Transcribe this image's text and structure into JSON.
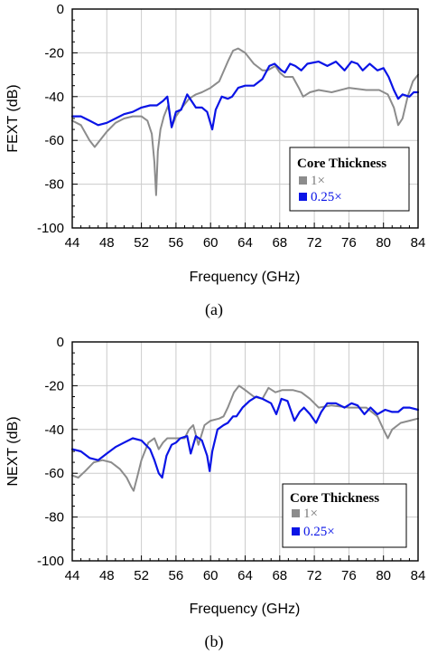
{
  "chart_data": [
    {
      "type": "line",
      "caption": "(a)",
      "xlabel": "Frequency (GHz)",
      "ylabel": "FEXT (dB)",
      "xlim": [
        44,
        84
      ],
      "ylim": [
        -100,
        0
      ],
      "xticks": [
        "44",
        "48",
        "52",
        "56",
        "60",
        "64",
        "68",
        "72",
        "76",
        "80",
        "84"
      ],
      "yticks": [
        "0",
        "-20",
        "-40",
        "-60",
        "-80",
        "-100"
      ],
      "grid": true,
      "legend": {
        "title": "Core Thickness",
        "placement": "bottom-right"
      },
      "series": [
        {
          "name": "1×",
          "color": "#8c8c8c",
          "points": [
            [
              44,
              -51
            ],
            [
              45,
              -53
            ],
            [
              46,
              -60
            ],
            [
              46.6,
              -63
            ],
            [
              47.2,
              -60
            ],
            [
              48,
              -56
            ],
            [
              49,
              -52
            ],
            [
              50,
              -50
            ],
            [
              51,
              -49
            ],
            [
              52,
              -49
            ],
            [
              52.7,
              -51
            ],
            [
              53.2,
              -57
            ],
            [
              53.5,
              -70
            ],
            [
              53.7,
              -85
            ],
            [
              53.9,
              -65
            ],
            [
              54.2,
              -55
            ],
            [
              54.6,
              -49
            ],
            [
              55.1,
              -44
            ],
            [
              55.5,
              -54
            ],
            [
              56,
              -49
            ],
            [
              56.7,
              -45
            ],
            [
              57.5,
              -41
            ],
            [
              58.3,
              -39
            ],
            [
              59,
              -38
            ],
            [
              60,
              -36
            ],
            [
              61,
              -33
            ],
            [
              62,
              -24
            ],
            [
              62.6,
              -19
            ],
            [
              63.2,
              -18
            ],
            [
              64,
              -20
            ],
            [
              65,
              -25
            ],
            [
              66,
              -28
            ],
            [
              66.6,
              -28
            ],
            [
              67.5,
              -26
            ],
            [
              68,
              -29
            ],
            [
              68.6,
              -31
            ],
            [
              69.5,
              -31
            ],
            [
              70.2,
              -36
            ],
            [
              70.7,
              -40
            ],
            [
              71.5,
              -38
            ],
            [
              72.5,
              -37
            ],
            [
              74,
              -38
            ],
            [
              76,
              -36
            ],
            [
              78,
              -37
            ],
            [
              79.5,
              -37
            ],
            [
              80.5,
              -39
            ],
            [
              81.2,
              -45
            ],
            [
              81.7,
              -53
            ],
            [
              82.2,
              -50
            ],
            [
              82.8,
              -40
            ],
            [
              83.4,
              -33
            ],
            [
              84,
              -30
            ]
          ]
        },
        {
          "name": "0.25×",
          "color": "#0a14e6",
          "points": [
            [
              44,
              -49
            ],
            [
              45,
              -49
            ],
            [
              46,
              -51
            ],
            [
              47,
              -53
            ],
            [
              48,
              -52
            ],
            [
              49,
              -50
            ],
            [
              50,
              -48
            ],
            [
              51,
              -47
            ],
            [
              52,
              -45
            ],
            [
              53,
              -44
            ],
            [
              53.8,
              -44
            ],
            [
              54.5,
              -42
            ],
            [
              55,
              -40
            ],
            [
              55.5,
              -54
            ],
            [
              56,
              -47
            ],
            [
              56.6,
              -46
            ],
            [
              57.3,
              -39
            ],
            [
              57.8,
              -42
            ],
            [
              58.3,
              -45
            ],
            [
              59,
              -45
            ],
            [
              59.6,
              -47
            ],
            [
              60.2,
              -55
            ],
            [
              60.6,
              -46
            ],
            [
              61.3,
              -40
            ],
            [
              62,
              -41
            ],
            [
              62.5,
              -40
            ],
            [
              63.2,
              -36
            ],
            [
              64,
              -35
            ],
            [
              65,
              -35
            ],
            [
              66,
              -32
            ],
            [
              66.8,
              -26
            ],
            [
              67.4,
              -25
            ],
            [
              68.2,
              -28
            ],
            [
              68.6,
              -29
            ],
            [
              69.2,
              -25
            ],
            [
              69.8,
              -26
            ],
            [
              70.5,
              -28
            ],
            [
              71.2,
              -25
            ],
            [
              72.5,
              -24
            ],
            [
              73.5,
              -26
            ],
            [
              74.5,
              -24
            ],
            [
              75.5,
              -28
            ],
            [
              76.3,
              -24
            ],
            [
              77,
              -25
            ],
            [
              77.6,
              -28
            ],
            [
              78.4,
              -25
            ],
            [
              79.3,
              -28
            ],
            [
              80,
              -27
            ],
            [
              80.6,
              -31
            ],
            [
              81.2,
              -37
            ],
            [
              81.7,
              -41
            ],
            [
              82.2,
              -39
            ],
            [
              83,
              -40
            ],
            [
              83.5,
              -38
            ],
            [
              84,
              -38
            ]
          ]
        }
      ]
    },
    {
      "type": "line",
      "caption": "(b)",
      "xlabel": "Frequency (GHz)",
      "ylabel": "NEXT (dB)",
      "xlim": [
        44,
        84
      ],
      "ylim": [
        -100,
        0
      ],
      "xticks": [
        "44",
        "48",
        "52",
        "56",
        "60",
        "64",
        "68",
        "72",
        "76",
        "80",
        "84"
      ],
      "yticks": [
        "0",
        "-20",
        "-40",
        "-60",
        "-80",
        "-100"
      ],
      "grid": true,
      "legend": {
        "title": "Core Thickness",
        "placement": "bottom-right"
      },
      "series": [
        {
          "name": "1×",
          "color": "#8c8c8c",
          "points": [
            [
              44,
              -61
            ],
            [
              44.7,
              -62
            ],
            [
              45.5,
              -59
            ],
            [
              46.5,
              -55
            ],
            [
              47.5,
              -54
            ],
            [
              48.5,
              -55
            ],
            [
              49.5,
              -58
            ],
            [
              50.3,
              -62
            ],
            [
              50.8,
              -66
            ],
            [
              51.1,
              -68
            ],
            [
              51.5,
              -62
            ],
            [
              52,
              -54
            ],
            [
              52.8,
              -46
            ],
            [
              53.5,
              -44
            ],
            [
              54,
              -49
            ],
            [
              54.5,
              -46
            ],
            [
              55,
              -44
            ],
            [
              56,
              -44
            ],
            [
              57,
              -44
            ],
            [
              57.5,
              -40
            ],
            [
              58,
              -38
            ],
            [
              58.6,
              -47
            ],
            [
              59.3,
              -38
            ],
            [
              60,
              -36
            ],
            [
              61,
              -35
            ],
            [
              61.5,
              -34
            ],
            [
              62,
              -30
            ],
            [
              62.7,
              -23
            ],
            [
              63.3,
              -20
            ],
            [
              64,
              -22
            ],
            [
              65,
              -25
            ],
            [
              66,
              -26
            ],
            [
              66.7,
              -21
            ],
            [
              67.5,
              -23
            ],
            [
              68.3,
              -22
            ],
            [
              69.5,
              -22
            ],
            [
              70.5,
              -23
            ],
            [
              71.5,
              -26
            ],
            [
              72.5,
              -30
            ],
            [
              74,
              -29
            ],
            [
              76,
              -30
            ],
            [
              78,
              -30
            ],
            [
              79.3,
              -34
            ],
            [
              80,
              -40
            ],
            [
              80.5,
              -44
            ],
            [
              81,
              -40
            ],
            [
              82,
              -37
            ],
            [
              83,
              -36
            ],
            [
              84,
              -35
            ]
          ]
        },
        {
          "name": "0.25×",
          "color": "#0a14e6",
          "points": [
            [
              44,
              -49
            ],
            [
              45,
              -50
            ],
            [
              46,
              -53
            ],
            [
              47,
              -54
            ],
            [
              48,
              -51
            ],
            [
              49,
              -48
            ],
            [
              50,
              -46
            ],
            [
              51,
              -44
            ],
            [
              52,
              -45
            ],
            [
              53,
              -49
            ],
            [
              53.5,
              -54
            ],
            [
              54,
              -60
            ],
            [
              54.4,
              -62
            ],
            [
              54.9,
              -52
            ],
            [
              55.5,
              -47
            ],
            [
              56,
              -46
            ],
            [
              56.5,
              -44
            ],
            [
              57.3,
              -43
            ],
            [
              57.7,
              -51
            ],
            [
              58.3,
              -43
            ],
            [
              59,
              -45
            ],
            [
              59.6,
              -52
            ],
            [
              59.9,
              -59
            ],
            [
              60.2,
              -50
            ],
            [
              60.8,
              -40
            ],
            [
              61.5,
              -38
            ],
            [
              62,
              -37
            ],
            [
              62.6,
              -34
            ],
            [
              63,
              -34
            ],
            [
              63.7,
              -30
            ],
            [
              64.5,
              -27
            ],
            [
              65.3,
              -25
            ],
            [
              66,
              -26
            ],
            [
              67,
              -28
            ],
            [
              67.6,
              -33
            ],
            [
              68.2,
              -26
            ],
            [
              68.9,
              -27
            ],
            [
              69.7,
              -36
            ],
            [
              70.3,
              -32
            ],
            [
              70.8,
              -30
            ],
            [
              71.5,
              -33
            ],
            [
              72.2,
              -37
            ],
            [
              72.8,
              -32
            ],
            [
              73.5,
              -28
            ],
            [
              74.5,
              -28
            ],
            [
              75.5,
              -30
            ],
            [
              76.3,
              -28
            ],
            [
              77,
              -29
            ],
            [
              77.8,
              -33
            ],
            [
              78.5,
              -30
            ],
            [
              79.3,
              -33
            ],
            [
              80.2,
              -31
            ],
            [
              81,
              -32
            ],
            [
              81.7,
              -32
            ],
            [
              82.3,
              -30
            ],
            [
              83,
              -30
            ],
            [
              84,
              -31
            ]
          ]
        }
      ]
    }
  ]
}
